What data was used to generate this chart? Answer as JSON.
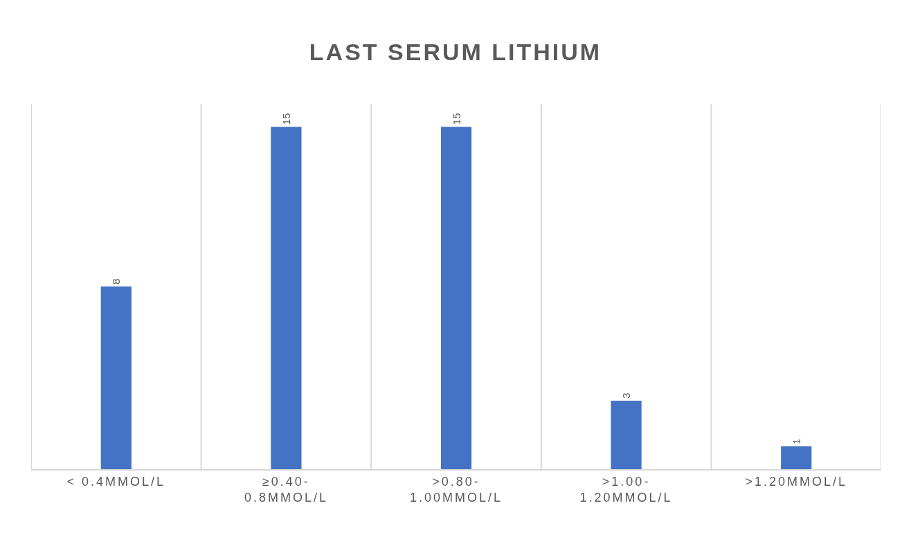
{
  "chart_data": {
    "type": "bar",
    "title": "LAST SERUM LITHIUM",
    "categories": [
      "< 0.4MMOL/L",
      "≥0.40-\n0.8MMOL/L",
      ">0.80-\n1.00MMOL/L",
      ">1.00-\n1.20MMOL/L",
      ">1.20MMOL/L"
    ],
    "values": [
      8,
      15,
      15,
      3,
      1
    ],
    "color": "#4472c4",
    "data_labels": true,
    "grid": "x",
    "tick_labels": "x"
  }
}
